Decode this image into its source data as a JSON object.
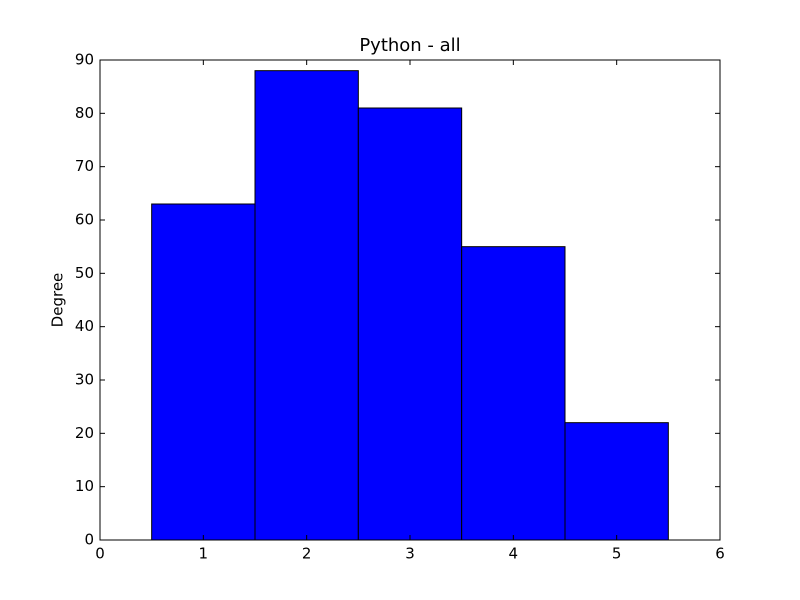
{
  "chart_data": {
    "type": "histogram",
    "title": "Python - all",
    "y_label": "Degree",
    "bins": [
      0.5,
      1.5,
      2.5,
      3.5,
      4.5,
      5.5
    ],
    "values": [
      63,
      88,
      81,
      55,
      22
    ],
    "color": "#0000ff",
    "xlim": [
      0,
      6
    ],
    "xticks": [
      0,
      1,
      2,
      3,
      4,
      5,
      6
    ],
    "ylim": [
      0,
      90
    ],
    "yticks": [
      0,
      10,
      20,
      30,
      40,
      50,
      60,
      70,
      80,
      90
    ]
  }
}
